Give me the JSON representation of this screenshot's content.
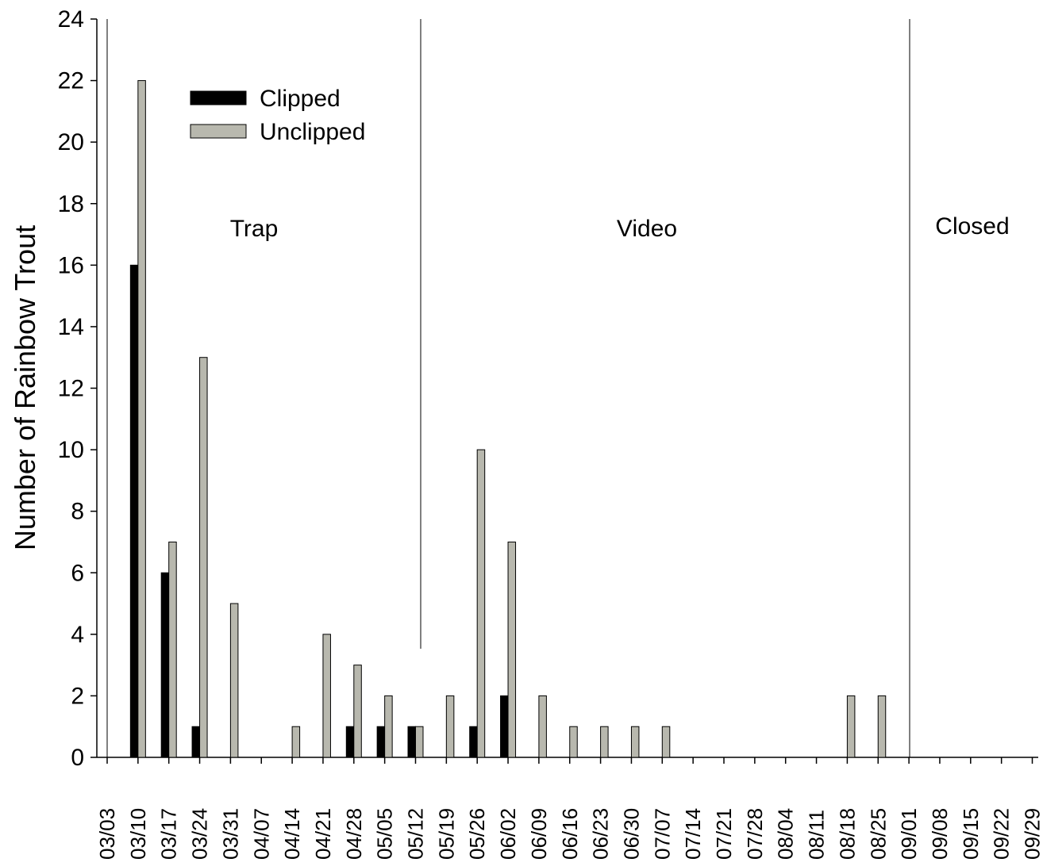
{
  "chart_data": {
    "type": "bar",
    "title": "",
    "xlabel": "",
    "ylabel": "Number of Rainbow Trout",
    "ylim": [
      0,
      24
    ],
    "yticks": [
      0,
      2,
      4,
      6,
      8,
      10,
      12,
      14,
      16,
      18,
      20,
      22,
      24
    ],
    "grid": false,
    "legend_position": "upper-left",
    "categories": [
      "03/03",
      "03/10",
      "03/17",
      "03/24",
      "03/31",
      "04/07",
      "04/14",
      "04/21",
      "04/28",
      "05/05",
      "05/12",
      "05/19",
      "05/26",
      "06/02",
      "06/09",
      "06/16",
      "06/23",
      "06/30",
      "07/07",
      "07/14",
      "07/21",
      "07/28",
      "08/04",
      "08/11",
      "08/18",
      "08/25",
      "09/01",
      "09/08",
      "09/15",
      "09/22",
      "09/29"
    ],
    "series": [
      {
        "name": "Clipped",
        "color": "#000000",
        "values": [
          0,
          16,
          6,
          1,
          0,
          0,
          0,
          0,
          1,
          1,
          1,
          0,
          1,
          2,
          0,
          0,
          0,
          0,
          0,
          0,
          0,
          0,
          0,
          0,
          0,
          0,
          0,
          0,
          0,
          0,
          0
        ]
      },
      {
        "name": "Unclipped",
        "color": "#b8b8ae",
        "values": [
          0,
          22,
          7,
          13,
          5,
          0,
          1,
          4,
          3,
          2,
          1,
          2,
          10,
          7,
          2,
          1,
          1,
          1,
          1,
          0,
          0,
          0,
          0,
          0,
          2,
          2,
          0,
          0,
          0,
          0,
          0
        ]
      }
    ],
    "regions": [
      {
        "label": "Trap"
      },
      {
        "label": "Video"
      },
      {
        "label": "Closed"
      }
    ]
  }
}
